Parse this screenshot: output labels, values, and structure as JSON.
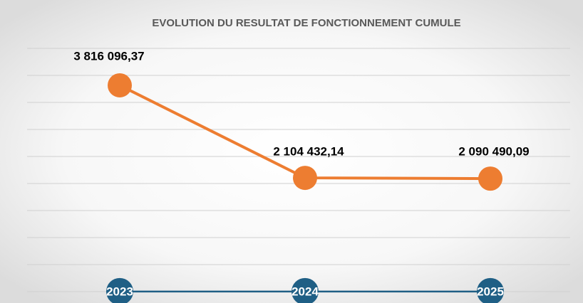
{
  "chart_data": {
    "type": "line",
    "title": "EVOLUTION DU RESULTAT DE FONCTIONNEMENT CUMULE",
    "categories": [
      "2023",
      "2024",
      "2025"
    ],
    "series": [
      {
        "color": "#ed7d31",
        "values": [
          3816096.37,
          2104432.14,
          2090490.09
        ],
        "value_labels": [
          "3 816 096,37",
          "2 104 432,14",
          "2 090 490,09"
        ]
      },
      {
        "color": "#1f5f85",
        "values": [
          2023,
          2024,
          2025
        ]
      }
    ],
    "ylim": [
      0,
      5000000
    ],
    "yticks": [
      0,
      500000,
      1000000,
      1500000,
      2000000,
      2500000,
      3000000,
      3500000,
      4000000,
      4500000
    ],
    "grid": true
  }
}
